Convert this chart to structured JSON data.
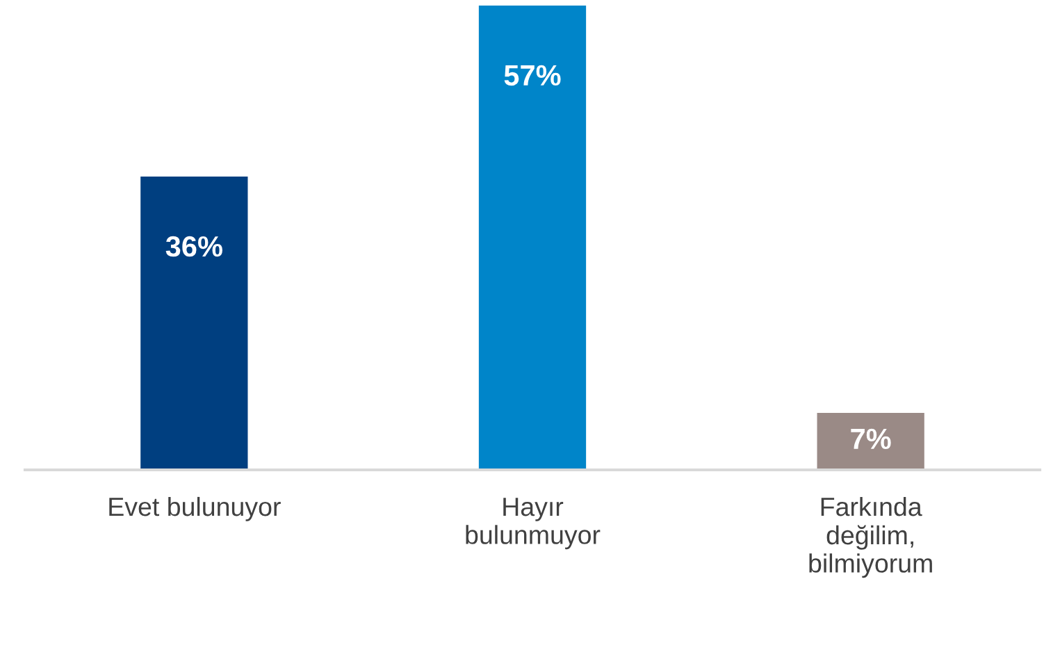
{
  "chart_data": {
    "type": "bar",
    "categories": [
      "Evet bulunuyor",
      "Hayır\nbulunmuyor",
      "Farkında\ndeğilim,\nbilmiyorum"
    ],
    "values": [
      36,
      57,
      7
    ],
    "colors": [
      "#003f80",
      "#0085c9",
      "#9a8a86"
    ],
    "value_labels": [
      "36%",
      "57%",
      "7%"
    ],
    "ylim": [
      0,
      57
    ],
    "tick_labels": "x",
    "grid": false,
    "legend": false
  }
}
